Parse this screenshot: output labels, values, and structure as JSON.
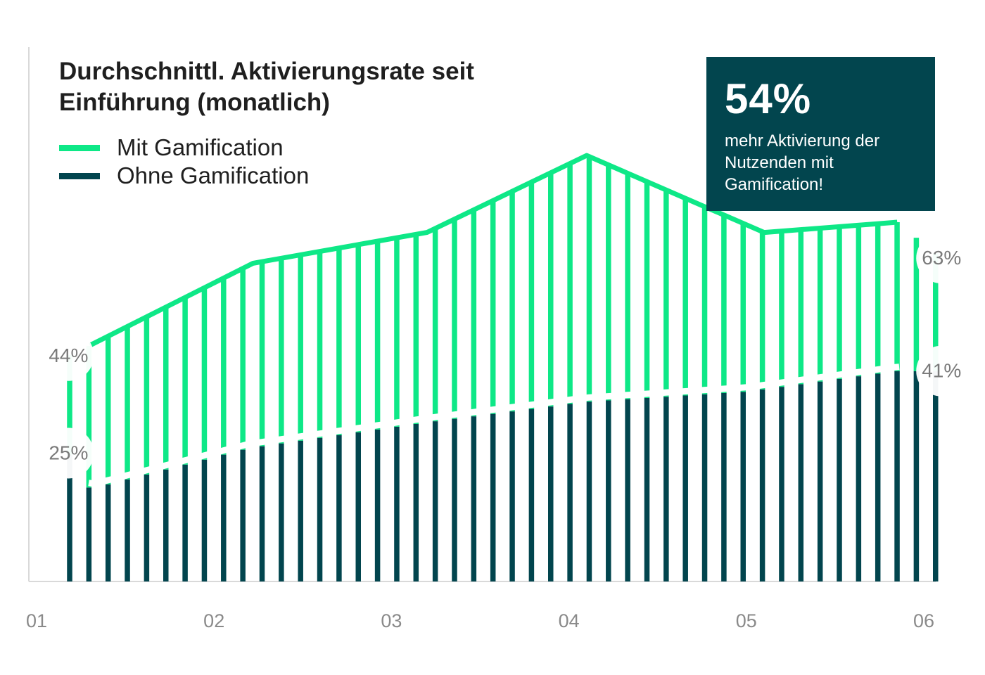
{
  "title": "Durchschnittl. Aktivierungsrate seit Einführung (monatlich)",
  "legend": [
    {
      "label": "Mit Gamification",
      "color": "#0ee887"
    },
    {
      "label": "Ohne Gamification",
      "color": "#02454e"
    }
  ],
  "callout": {
    "value": "54%",
    "text": "mehr Aktivierung der Nutzenden mit Gamification!",
    "background": "#02454e"
  },
  "colors": {
    "mit": "#0ee887",
    "ohne": "#02454e",
    "axis": "#d9d9d9",
    "tick_text": "#8a8a8a"
  },
  "chart_data": {
    "type": "area",
    "title": "Durchschnittl. Aktivierungsrate seit Einführung (monatlich)",
    "x_ticks": [
      "01",
      "02",
      "03",
      "04",
      "05",
      "06"
    ],
    "x_range": [
      1,
      6
    ],
    "y_range": [
      0,
      100
    ],
    "grid": false,
    "legend_position": "top-left",
    "series": [
      {
        "name": "Mit Gamification",
        "color": "#0ee887",
        "points": [
          [
            1.18,
            44
          ],
          [
            1.3,
            46
          ],
          [
            2.22,
            62
          ],
          [
            3.2,
            68
          ],
          [
            4.1,
            83
          ],
          [
            5.1,
            68
          ],
          [
            5.85,
            70
          ],
          [
            6.1,
            63
          ]
        ]
      },
      {
        "name": "Ohne Gamification",
        "color": "#02454e",
        "points": [
          [
            1.18,
            25
          ],
          [
            1.3,
            18
          ],
          [
            2.2,
            26
          ],
          [
            3.2,
            31
          ],
          [
            4.1,
            35
          ],
          [
            5.0,
            37
          ],
          [
            5.85,
            41
          ],
          [
            6.1,
            41
          ]
        ]
      }
    ],
    "annotations": [
      {
        "text": "44%",
        "series": "Mit Gamification",
        "x": 1.18,
        "y": 44
      },
      {
        "text": "25%",
        "series": "Ohne Gamification",
        "x": 1.18,
        "y": 25
      },
      {
        "text": "63%",
        "series": "Mit Gamification",
        "x": 6.1,
        "y": 63
      },
      {
        "text": "41%",
        "series": "Ohne Gamification",
        "x": 6.1,
        "y": 41
      }
    ]
  }
}
